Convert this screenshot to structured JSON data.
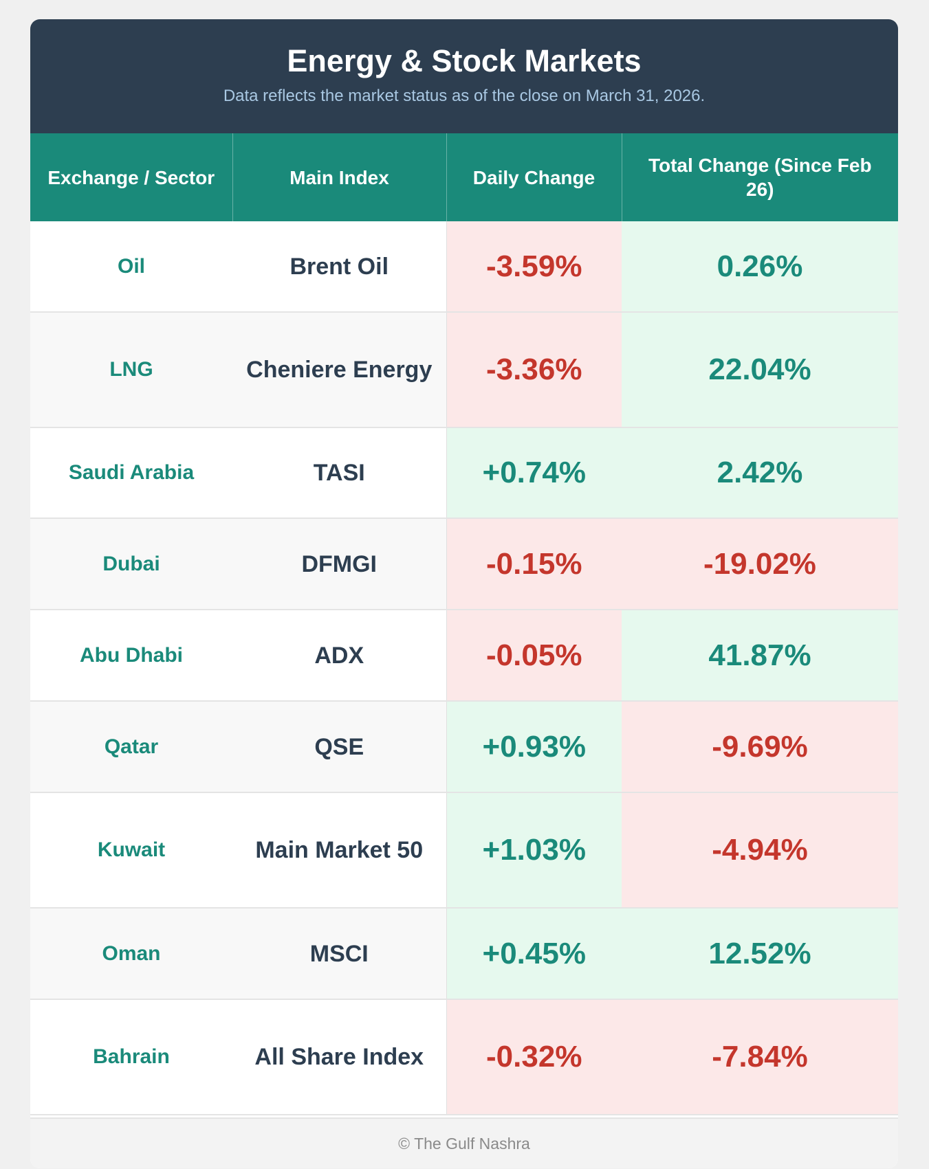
{
  "header": {
    "title": "Energy & Stock Markets",
    "subtitle": "Data reflects the market status as of the close on March 31, 2026."
  },
  "columns": [
    "Exchange / Sector",
    "Main Index",
    "Daily Change",
    "Total Change (Since Feb 26)"
  ],
  "rows": [
    {
      "sector": "Oil",
      "index": "Brent Oil",
      "daily": "-3.59%",
      "total": "0.26%"
    },
    {
      "sector": "LNG",
      "index": "Cheniere Energy",
      "daily": "-3.36%",
      "total": "22.04%"
    },
    {
      "sector": "Saudi Arabia",
      "index": "TASI",
      "daily": "+0.74%",
      "total": "2.42%"
    },
    {
      "sector": "Dubai",
      "index": "DFMGI",
      "daily": "-0.15%",
      "total": "-19.02%"
    },
    {
      "sector": "Abu Dhabi",
      "index": "ADX",
      "daily": "-0.05%",
      "total": "41.87%"
    },
    {
      "sector": "Qatar",
      "index": "QSE",
      "daily": "+0.93%",
      "total": "-9.69%"
    },
    {
      "sector": "Kuwait",
      "index": "Main Market 50",
      "daily": "+1.03%",
      "total": "-4.94%"
    },
    {
      "sector": "Oman",
      "index": "MSCI",
      "daily": "+0.45%",
      "total": "12.52%"
    },
    {
      "sector": "Bahrain",
      "index": "All Share Index",
      "daily": "-0.32%",
      "total": "-7.84%"
    }
  ],
  "colors": {
    "header_bg": "#2d3e50",
    "table_header_bg": "#1a8a7a",
    "positive": "#1a8a7a",
    "negative": "#c4362c"
  },
  "footer": {
    "credit": "© The Gulf Nashra"
  }
}
